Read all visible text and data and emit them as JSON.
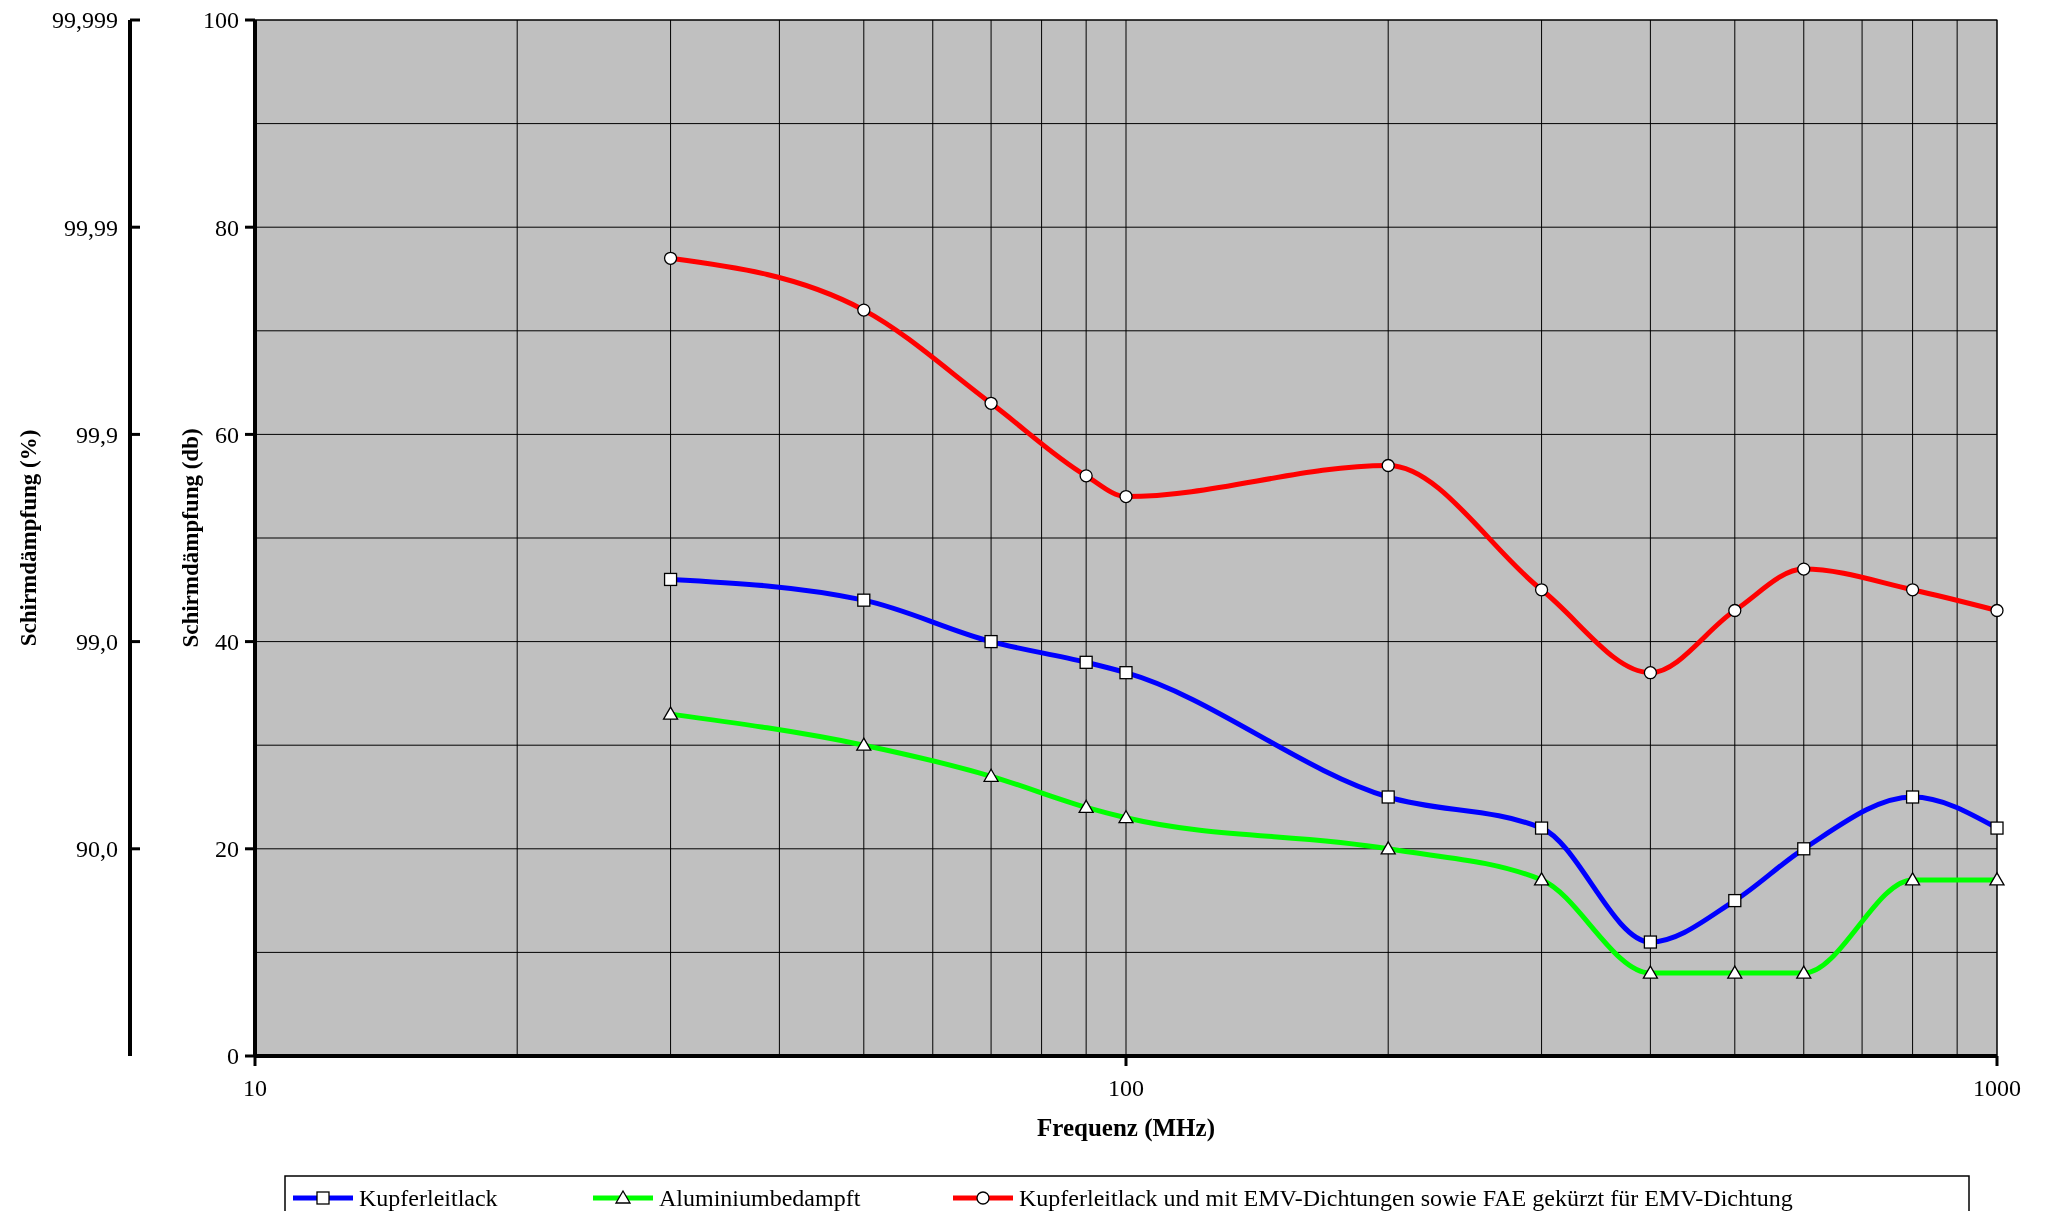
{
  "chart_data": {
    "type": "line",
    "xlabel": "Frequenz (MHz)",
    "ylabel": "Schirmdämpfung (db)",
    "x": [
      30,
      50,
      70,
      90,
      100,
      200,
      300,
      400,
      500,
      600,
      800,
      1000
    ],
    "series": [
      {
        "name": "Kupferleitlack",
        "color": "#0000ff",
        "marker": "square",
        "values": [
          46,
          44,
          40,
          38,
          37,
          25,
          22,
          11,
          15,
          20,
          25,
          22
        ]
      },
      {
        "name": "Aluminiumbedampft",
        "color": "#00ff00",
        "marker": "triangle",
        "values": [
          33,
          30,
          27,
          24,
          23,
          20,
          17,
          8,
          8,
          8,
          17,
          17
        ]
      },
      {
        "name": "Kupferleitlack und mit EMV-Dichtungen sowie FAE gekürzt für EMV-Dichtung",
        "color": "#ff0000",
        "marker": "circle",
        "values": [
          77,
          72,
          63,
          56,
          54,
          57,
          45,
          37,
          43,
          47,
          45,
          43
        ]
      }
    ],
    "log": "x",
    "xlim": [
      10,
      1000
    ],
    "xticks": [
      10,
      {
        "value": 20,
        "label": null
      },
      {
        "value": 30,
        "label": null
      },
      {
        "value": 40,
        "label": null
      },
      {
        "value": 50,
        "label": null
      },
      {
        "value": 60,
        "label": null
      },
      {
        "value": 70,
        "label": null
      },
      {
        "value": 80,
        "label": null
      },
      {
        "value": 90,
        "label": null
      },
      100,
      {
        "value": 200,
        "label": null
      },
      {
        "value": 300,
        "label": null
      },
      {
        "value": 400,
        "label": null
      },
      {
        "value": 500,
        "label": null
      },
      {
        "value": 600,
        "label": null
      },
      {
        "value": 700,
        "label": null
      },
      {
        "value": 800,
        "label": null
      },
      {
        "value": 900,
        "label": null
      },
      1000
    ],
    "ylim": [
      0,
      100
    ],
    "yticks": [
      0,
      {
        "value": 10,
        "label": null
      },
      20,
      {
        "value": 30,
        "label": null
      },
      40,
      {
        "value": 50,
        "label": null
      },
      60,
      {
        "value": 70,
        "label": null
      },
      80,
      {
        "value": 90,
        "label": null
      },
      100
    ],
    "annotations": [
      "Schirmdämpfung (%)",
      "90,0",
      "99,0",
      "99,9",
      "99,99",
      "99,999"
    ],
    "grid": true,
    "legend": "bottom",
    "line_style": "solid"
  }
}
